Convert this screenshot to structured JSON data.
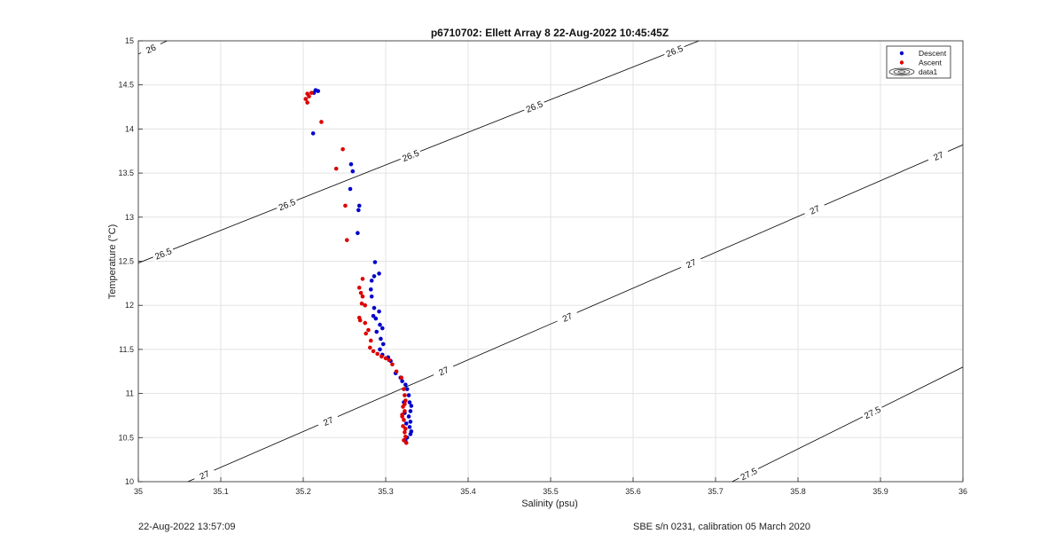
{
  "footer": {
    "left": "22-Aug-2022 13:57:09",
    "right": "SBE s/n 0231, calibration 05 March 2020"
  },
  "chart_data": {
    "type": "scatter",
    "title": "p6710702: Ellett Array 8 22-Aug-2022 10:45:45Z",
    "xlabel": "Salinity (psu)",
    "ylabel": "Temperature (°C)",
    "xlim": [
      35,
      36
    ],
    "ylim": [
      10,
      15
    ],
    "xticks": [
      35,
      35.1,
      35.2,
      35.3,
      35.4,
      35.5,
      35.6,
      35.7,
      35.8,
      35.9,
      36
    ],
    "xtick_labels": [
      "35",
      "35.1",
      "35.2",
      "35.3",
      "35.4",
      "35.5",
      "35.6",
      "35.7",
      "35.8",
      "35.9",
      "36"
    ],
    "yticks": [
      10,
      10.5,
      11,
      11.5,
      12,
      12.5,
      13,
      13.5,
      14,
      14.5,
      15
    ],
    "ytick_labels": [
      "10",
      "10.5",
      "11",
      "11.5",
      "12",
      "12.5",
      "13",
      "13.5",
      "14",
      "14.5",
      "15"
    ],
    "grid": true,
    "legend_position": "top-right",
    "legend": [
      "Descent",
      "Ascent",
      "data1"
    ],
    "colors": {
      "descent": "#0000cc",
      "ascent": "#dd0000",
      "contour": "#000000"
    },
    "contours": [
      {
        "level": 26,
        "label": "26",
        "points": [
          [
            35.0,
            14.85
          ],
          [
            35.035,
            15.0
          ]
        ],
        "label_at": [
          35.015
        ]
      },
      {
        "level": 26.5,
        "label": "26.5",
        "points": [
          [
            35.0,
            12.48
          ],
          [
            35.68,
            15.0
          ]
        ],
        "label_at": [
          35.03,
          35.18,
          35.33,
          35.48,
          35.65
        ]
      },
      {
        "level": 27,
        "label": "27",
        "points": [
          [
            35.06,
            10.0
          ],
          [
            36.0,
            13.82
          ]
        ],
        "label_at": [
          35.08,
          35.23,
          35.37,
          35.52,
          35.67,
          35.82,
          35.97
        ]
      },
      {
        "level": 27.5,
        "label": "27.5",
        "points": [
          [
            35.72,
            10.0
          ],
          [
            36.0,
            11.3
          ]
        ],
        "label_at": [
          35.74,
          35.89
        ]
      }
    ],
    "series": [
      {
        "name": "Descent",
        "points": [
          [
            35.218,
            14.43
          ],
          [
            35.215,
            14.44
          ],
          [
            35.213,
            14.41
          ],
          [
            35.212,
            13.95
          ],
          [
            35.258,
            13.6
          ],
          [
            35.26,
            13.52
          ],
          [
            35.257,
            13.32
          ],
          [
            35.268,
            13.13
          ],
          [
            35.267,
            13.08
          ],
          [
            35.266,
            12.82
          ],
          [
            35.287,
            12.49
          ],
          [
            35.292,
            12.36
          ],
          [
            35.286,
            12.33
          ],
          [
            35.283,
            12.28
          ],
          [
            35.282,
            12.18
          ],
          [
            35.283,
            12.1
          ],
          [
            35.286,
            11.97
          ],
          [
            35.292,
            11.93
          ],
          [
            35.285,
            11.88
          ],
          [
            35.288,
            11.85
          ],
          [
            35.293,
            11.78
          ],
          [
            35.296,
            11.74
          ],
          [
            35.289,
            11.7
          ],
          [
            35.294,
            11.62
          ],
          [
            35.297,
            11.56
          ],
          [
            35.293,
            11.5
          ],
          [
            35.296,
            11.44
          ],
          [
            35.303,
            11.41
          ],
          [
            35.306,
            11.37
          ],
          [
            35.312,
            11.23
          ],
          [
            35.318,
            11.18
          ],
          [
            35.32,
            11.14
          ],
          [
            35.324,
            11.1
          ],
          [
            35.326,
            11.05
          ],
          [
            35.328,
            10.98
          ],
          [
            35.329,
            10.9
          ],
          [
            35.331,
            10.86
          ],
          [
            35.33,
            10.8
          ],
          [
            35.328,
            10.74
          ],
          [
            35.33,
            10.68
          ],
          [
            35.329,
            10.62
          ],
          [
            35.331,
            10.57
          ],
          [
            35.33,
            10.54
          ],
          [
            35.326,
            10.5
          ],
          [
            35.324,
            10.46
          ],
          [
            35.322,
            10.9
          ],
          [
            35.323,
            10.78
          ],
          [
            35.325,
            10.66
          ]
        ]
      },
      {
        "name": "Ascent",
        "points": [
          [
            35.205,
            14.4
          ],
          [
            35.207,
            14.37
          ],
          [
            35.203,
            14.34
          ],
          [
            35.205,
            14.3
          ],
          [
            35.21,
            14.41
          ],
          [
            35.222,
            14.08
          ],
          [
            35.248,
            13.77
          ],
          [
            35.24,
            13.55
          ],
          [
            35.251,
            13.13
          ],
          [
            35.253,
            12.74
          ],
          [
            35.272,
            12.3
          ],
          [
            35.268,
            12.2
          ],
          [
            35.27,
            12.14
          ],
          [
            35.272,
            12.1
          ],
          [
            35.271,
            12.02
          ],
          [
            35.275,
            12.0
          ],
          [
            35.268,
            11.86
          ],
          [
            35.269,
            11.83
          ],
          [
            35.275,
            11.8
          ],
          [
            35.279,
            11.72
          ],
          [
            35.276,
            11.68
          ],
          [
            35.282,
            11.6
          ],
          [
            35.281,
            11.52
          ],
          [
            35.285,
            11.48
          ],
          [
            35.29,
            11.45
          ],
          [
            35.295,
            11.42
          ],
          [
            35.3,
            11.4
          ],
          [
            35.304,
            11.38
          ],
          [
            35.308,
            11.33
          ],
          [
            35.313,
            11.25
          ],
          [
            35.319,
            11.18
          ],
          [
            35.322,
            11.05
          ],
          [
            35.323,
            10.98
          ],
          [
            35.324,
            10.92
          ],
          [
            35.321,
            10.85
          ],
          [
            35.323,
            10.8
          ],
          [
            35.32,
            10.74
          ],
          [
            35.322,
            10.7
          ],
          [
            35.321,
            10.63
          ],
          [
            35.323,
            10.56
          ],
          [
            35.324,
            10.51
          ],
          [
            35.322,
            10.47
          ],
          [
            35.325,
            10.44
          ],
          [
            35.32,
            10.76
          ],
          [
            35.323,
            10.88
          ],
          [
            35.324,
            10.6
          ]
        ]
      }
    ]
  }
}
